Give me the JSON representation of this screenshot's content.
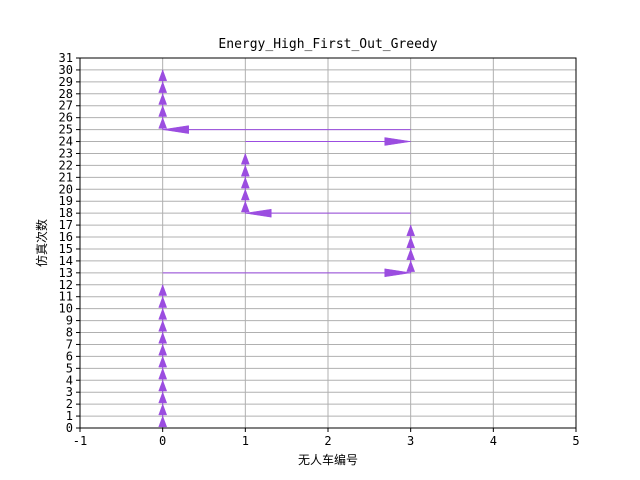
{
  "chart_data": {
    "type": "line",
    "title": "Energy_High_First_Out_Greedy",
    "xlabel": "无人车编号",
    "ylabel": "仿真次数",
    "xlim": [
      -1,
      5
    ],
    "ylim": [
      0,
      31
    ],
    "x_ticks": [
      "-1",
      "0",
      "1",
      "2",
      "3",
      "4",
      "5"
    ],
    "y_ticks": [
      "0",
      "1",
      "2",
      "3",
      "4",
      "5",
      "6",
      "7",
      "8",
      "9",
      "10",
      "11",
      "12",
      "13",
      "14",
      "15",
      "16",
      "17",
      "18",
      "19",
      "20",
      "21",
      "22",
      "23",
      "24",
      "25",
      "26",
      "27",
      "28",
      "29",
      "30",
      "31"
    ],
    "grid": true,
    "legend": "none",
    "series_color": "#9b4de0",
    "description_note": "",
    "transitions": [
      {
        "from": [
          0,
          0
        ],
        "to": [
          0,
          1
        ]
      },
      {
        "from": [
          0,
          1
        ],
        "to": [
          0,
          2
        ]
      },
      {
        "from": [
          0,
          2
        ],
        "to": [
          0,
          3
        ]
      },
      {
        "from": [
          0,
          3
        ],
        "to": [
          0,
          4
        ]
      },
      {
        "from": [
          0,
          4
        ],
        "to": [
          0,
          5
        ]
      },
      {
        "from": [
          0,
          5
        ],
        "to": [
          0,
          6
        ]
      },
      {
        "from": [
          0,
          6
        ],
        "to": [
          0,
          7
        ]
      },
      {
        "from": [
          0,
          7
        ],
        "to": [
          0,
          8
        ]
      },
      {
        "from": [
          0,
          8
        ],
        "to": [
          0,
          9
        ]
      },
      {
        "from": [
          0,
          9
        ],
        "to": [
          0,
          10
        ]
      },
      {
        "from": [
          0,
          10
        ],
        "to": [
          0,
          11
        ]
      },
      {
        "from": [
          0,
          11
        ],
        "to": [
          0,
          12
        ]
      },
      {
        "from": [
          0,
          13
        ],
        "to": [
          3,
          13
        ]
      },
      {
        "from": [
          3,
          13
        ],
        "to": [
          3,
          14
        ]
      },
      {
        "from": [
          3,
          14
        ],
        "to": [
          3,
          15
        ]
      },
      {
        "from": [
          3,
          15
        ],
        "to": [
          3,
          16
        ]
      },
      {
        "from": [
          3,
          16
        ],
        "to": [
          3,
          17
        ]
      },
      {
        "from": [
          3,
          18
        ],
        "to": [
          1,
          18
        ]
      },
      {
        "from": [
          1,
          18
        ],
        "to": [
          1,
          19
        ]
      },
      {
        "from": [
          1,
          19
        ],
        "to": [
          1,
          20
        ]
      },
      {
        "from": [
          1,
          20
        ],
        "to": [
          1,
          21
        ]
      },
      {
        "from": [
          1,
          21
        ],
        "to": [
          1,
          22
        ]
      },
      {
        "from": [
          1,
          22
        ],
        "to": [
          1,
          23
        ]
      },
      {
        "from": [
          1,
          24
        ],
        "to": [
          3,
          24
        ]
      },
      {
        "from": [
          3,
          25
        ],
        "to": [
          0,
          25
        ]
      },
      {
        "from": [
          0,
          25
        ],
        "to": [
          0,
          26
        ]
      },
      {
        "from": [
          0,
          26
        ],
        "to": [
          0,
          27
        ]
      },
      {
        "from": [
          0,
          27
        ],
        "to": [
          0,
          28
        ]
      },
      {
        "from": [
          0,
          28
        ],
        "to": [
          0,
          29
        ]
      },
      {
        "from": [
          0,
          29
        ],
        "to": [
          0,
          30
        ]
      }
    ]
  }
}
